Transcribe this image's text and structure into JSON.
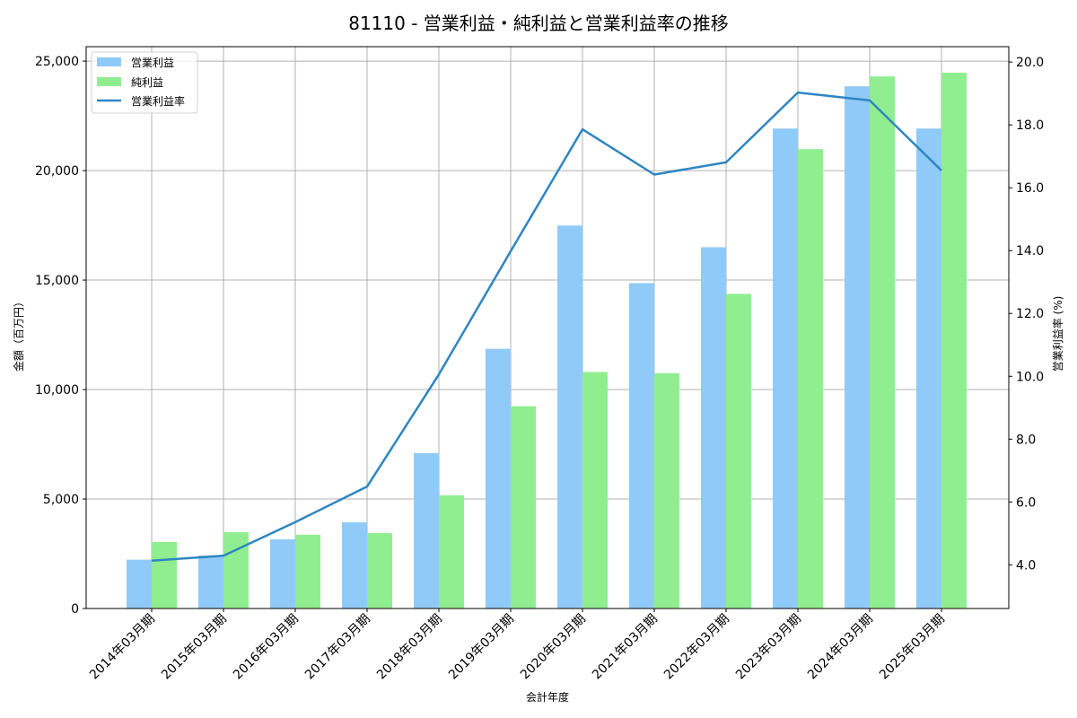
{
  "chart_data": {
    "type": "bar",
    "title": "81110 - 営業利益・純利益と営業利益率の推移",
    "xlabel": "会計年度",
    "ylabel": "金額（百万円）",
    "y2label": "営業利益率 (%)",
    "categories": [
      "2014年03月期",
      "2015年03月期",
      "2016年03月期",
      "2017年03月期",
      "2018年03月期",
      "2019年03月期",
      "2020年03月期",
      "2021年03月期",
      "2022年03月期",
      "2023年03月期",
      "2024年03月期",
      "2025年03月期"
    ],
    "series": [
      {
        "name": "営業利益",
        "type": "bar",
        "axis": "left",
        "color": "#90CAF9",
        "values": [
          2230,
          2420,
          3160,
          3940,
          7100,
          11860,
          17490,
          14860,
          16500,
          21920,
          23850,
          21920
        ]
      },
      {
        "name": "純利益",
        "type": "bar",
        "axis": "left",
        "color": "#90EE90",
        "values": [
          3040,
          3490,
          3370,
          3450,
          5170,
          9240,
          10800,
          10750,
          14370,
          20980,
          24300,
          24470
        ]
      },
      {
        "name": "営業利益率",
        "type": "line",
        "axis": "right",
        "color": "#2E86C1",
        "values": [
          4.13,
          4.29,
          5.36,
          6.49,
          10.06,
          13.98,
          17.86,
          16.42,
          16.81,
          19.03,
          18.78,
          16.55
        ]
      }
    ],
    "ylim": [
      0,
      25660
    ],
    "y2lim": [
      2.61,
      20.49
    ],
    "yticks": [
      0,
      5000,
      10000,
      15000,
      20000,
      25000
    ],
    "ytick_labels": [
      "0",
      "5,000",
      "10,000",
      "15,000",
      "20,000",
      "25,000"
    ],
    "y2ticks": [
      4,
      6,
      8,
      10,
      12,
      14,
      16,
      18,
      20
    ],
    "y2tick_labels": [
      "4.0",
      "6.0",
      "8.0",
      "10.0",
      "12.0",
      "14.0",
      "16.0",
      "18.0",
      "20.0"
    ],
    "grid": true,
    "legend_position": "upper left"
  }
}
